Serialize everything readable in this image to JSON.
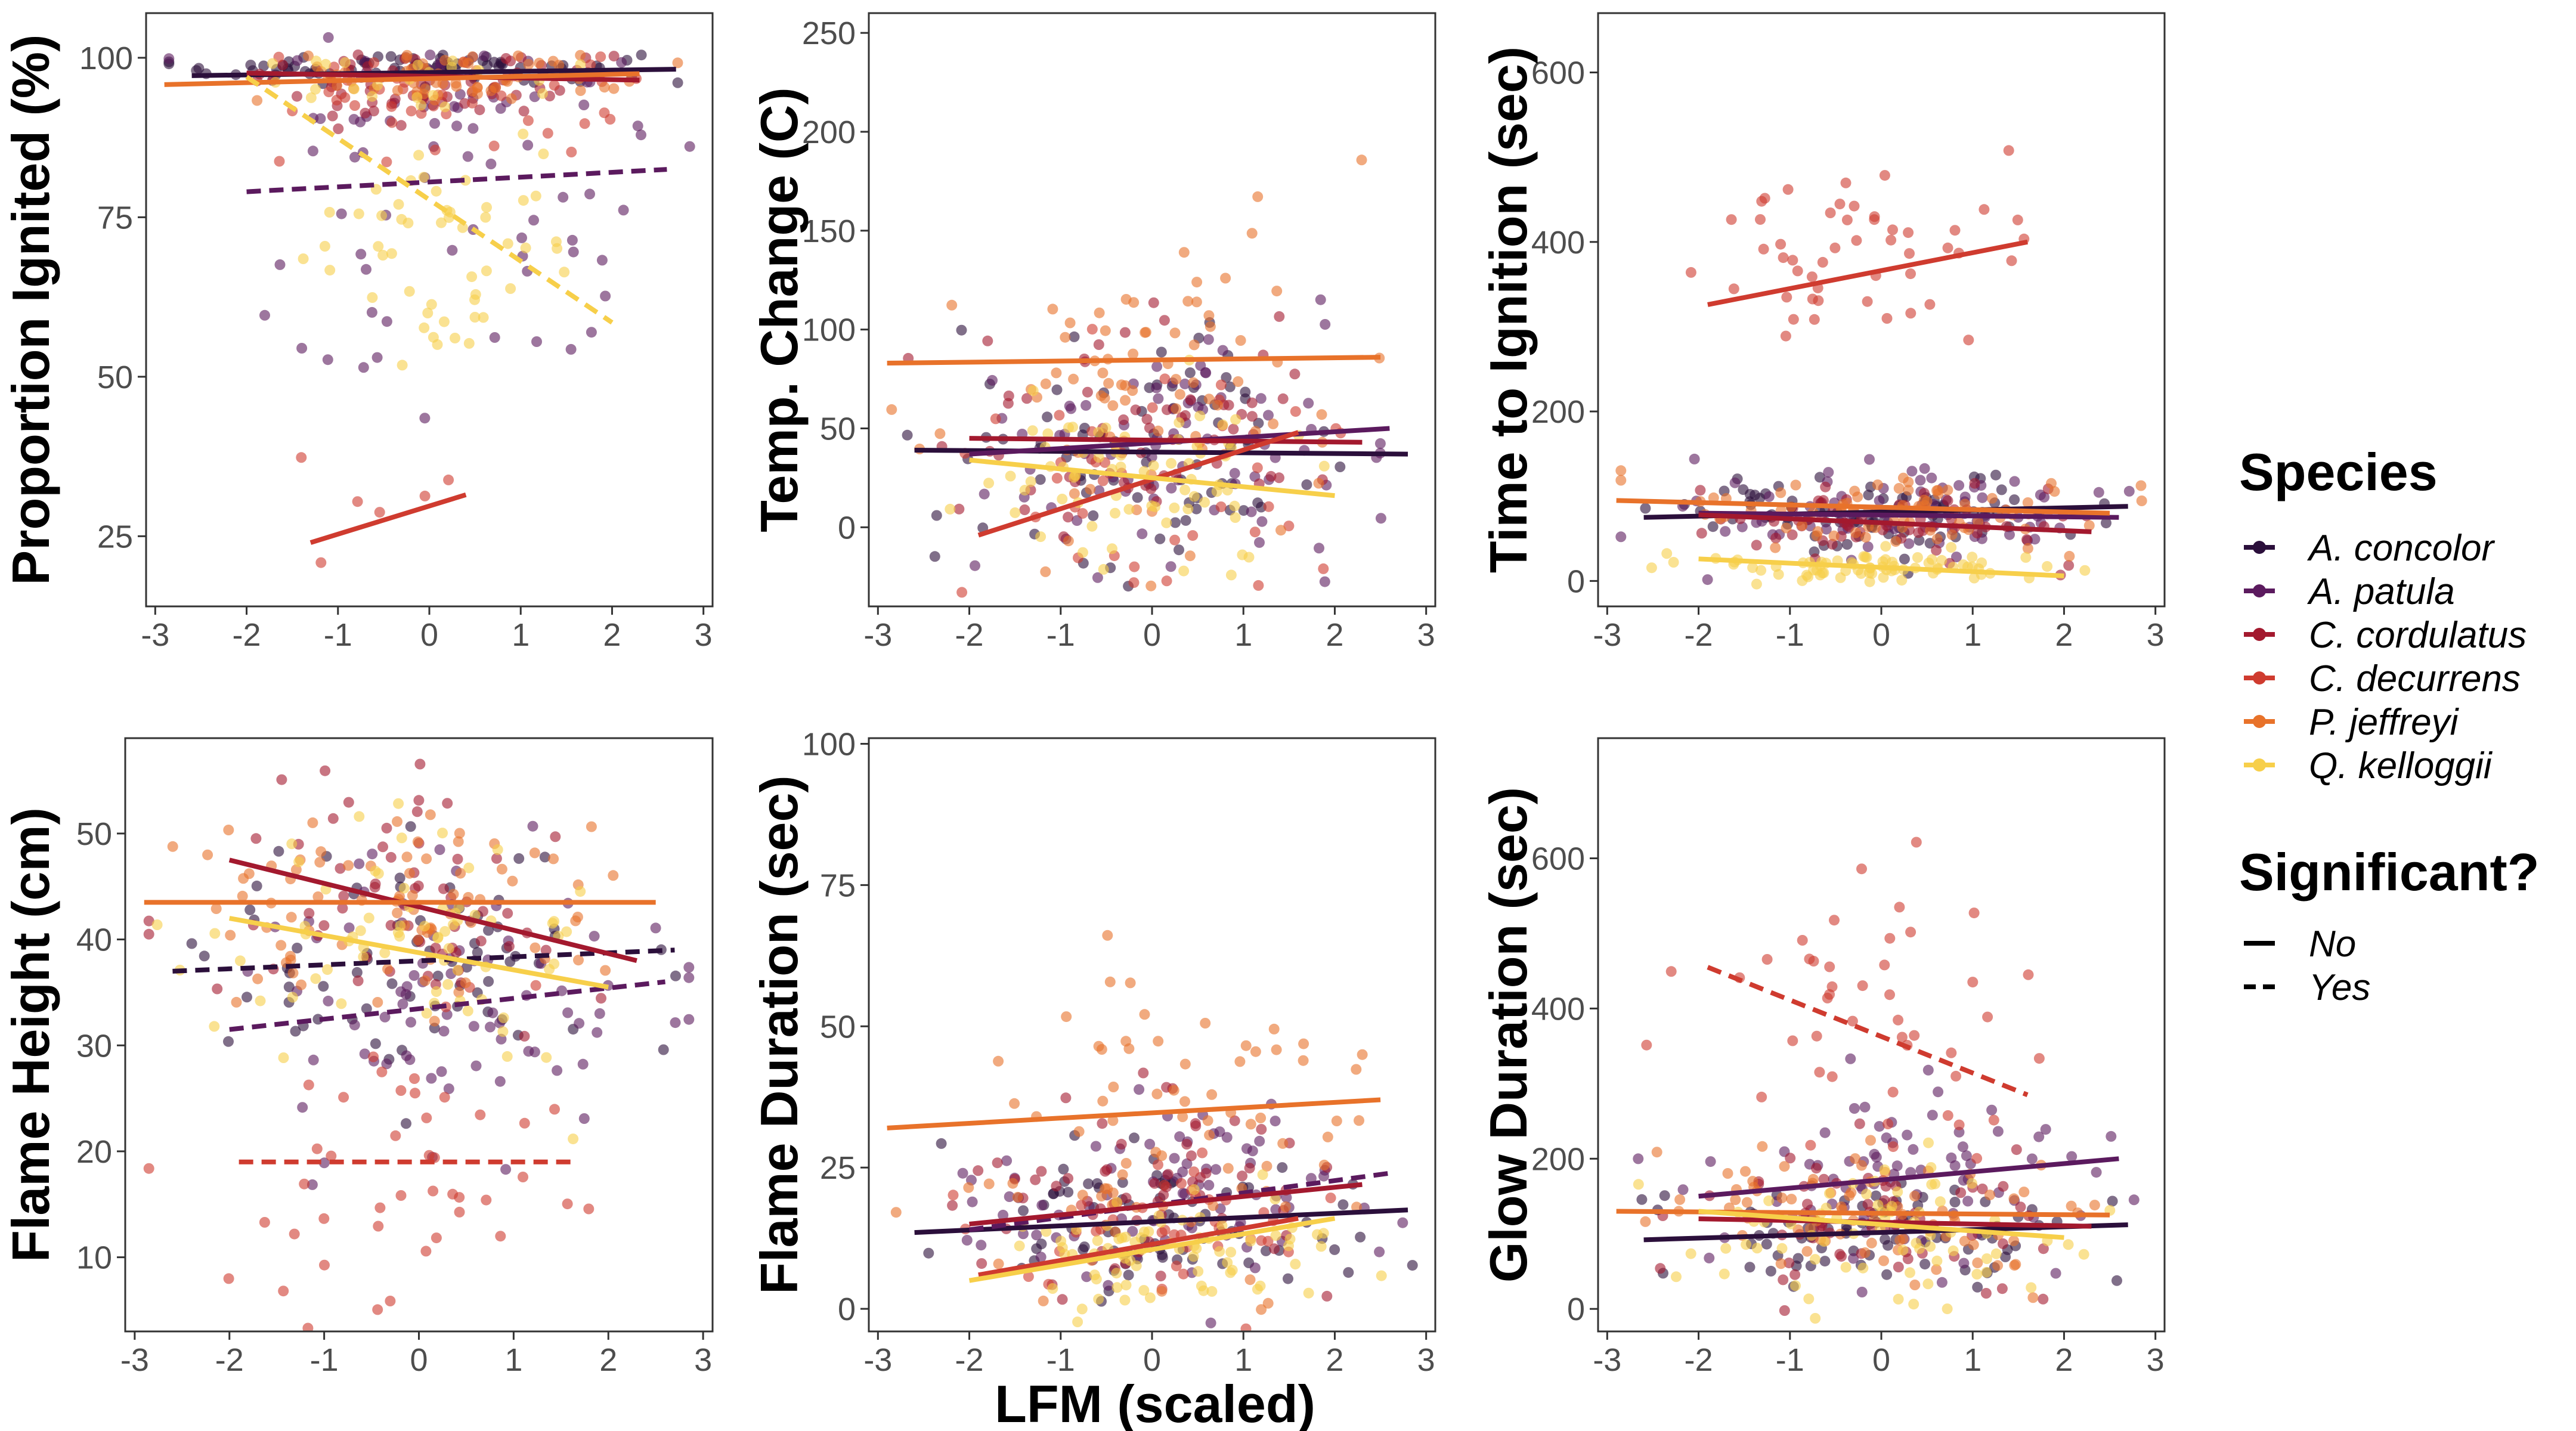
{
  "figure": {
    "xlabel": "LFM (scaled)"
  },
  "legend": {
    "species_title": "Species",
    "significance_title": "Significant?",
    "species": [
      {
        "name": "A. concolor",
        "color": "#2b0f3b"
      },
      {
        "name": "A. patula",
        "color": "#5b1a5e"
      },
      {
        "name": "C. cordulatus",
        "color": "#a3192e"
      },
      {
        "name": "C. decurrens",
        "color": "#cf3b2f"
      },
      {
        "name": "P. jeffreyi",
        "color": "#e8722a"
      },
      {
        "name": "Q. kelloggii",
        "color": "#f7cf4a"
      }
    ],
    "significance": [
      {
        "name": "No",
        "dash": "solid"
      },
      {
        "name": "Yes",
        "dash": "dashed"
      }
    ]
  },
  "chart_data": [
    {
      "type": "scatter",
      "ylabel": "Proportion Ignited (%)",
      "xlim": [
        -3.1,
        3.1
      ],
      "ylim": [
        14,
        107
      ],
      "xticks": [
        -3,
        -2,
        -1,
        0,
        1,
        2,
        3
      ],
      "yticks": [
        25,
        50,
        75,
        100
      ],
      "trend_lines": [
        {
          "species": "A. concolor",
          "significant": "No",
          "x": [
            -2.6,
            2.7
          ],
          "y": [
            97.2,
            98.2
          ]
        },
        {
          "species": "A. patula",
          "significant": "Yes",
          "x": [
            -2.0,
            2.6
          ],
          "y": [
            79,
            82.5
          ]
        },
        {
          "species": "C. cordulatus",
          "significant": "No",
          "x": [
            -2.0,
            2.3
          ],
          "y": [
            97.6,
            96.5
          ]
        },
        {
          "species": "C. decurrens",
          "significant": "No",
          "x": [
            -1.3,
            0.4
          ],
          "y": [
            24,
            31.5
          ]
        },
        {
          "species": "P. jeffreyi",
          "significant": "No",
          "x": [
            -2.9,
            2.3
          ],
          "y": [
            95.8,
            97.5
          ]
        },
        {
          "species": "Q. kelloggii",
          "significant": "Yes",
          "x": [
            -2.0,
            2.0
          ],
          "y": [
            97,
            58.5
          ]
        }
      ],
      "points": [
        {
          "species": "A. concolor",
          "cluster": "band",
          "n": 80,
          "xm": -0.1,
          "xs": 1.15,
          "ym": 98.5,
          "ys": 1.5
        },
        {
          "species": "A. patula",
          "cluster": "band",
          "n": 45,
          "xm": 0.2,
          "xs": 1.2,
          "ym": 95,
          "ys": 5
        },
        {
          "species": "A. patula",
          "cluster": "low",
          "n": 40,
          "xm": 0.3,
          "xs": 1.1,
          "ym": 72,
          "ys": 14
        },
        {
          "species": "C. cordulatus",
          "cluster": "band",
          "n": 60,
          "xm": 0,
          "xs": 1.1,
          "ym": 96,
          "ys": 3
        },
        {
          "species": "C. decurrens",
          "cluster": "band",
          "n": 40,
          "xm": 0.1,
          "xs": 1.0,
          "ym": 95,
          "ys": 5
        },
        {
          "species": "C. decurrens",
          "cluster": "low",
          "n": 6,
          "xm": -0.5,
          "xs": 0.6,
          "ym": 27,
          "ys": 4
        },
        {
          "species": "P. jeffreyi",
          "cluster": "band",
          "n": 60,
          "xm": -0.1,
          "xs": 1.0,
          "ym": 97.5,
          "ys": 2
        },
        {
          "species": "Q. kelloggii",
          "cluster": "band",
          "n": 20,
          "xm": -0.6,
          "xs": 0.9,
          "ym": 97,
          "ys": 3
        },
        {
          "species": "Q. kelloggii",
          "cluster": "low",
          "n": 55,
          "xm": 0.2,
          "xs": 0.9,
          "ym": 72,
          "ys": 10
        }
      ]
    },
    {
      "type": "scatter",
      "ylabel": "Temp. Change (C)",
      "xlim": [
        -3.1,
        3.1
      ],
      "ylim": [
        -40,
        260
      ],
      "xticks": [
        -3,
        -2,
        -1,
        0,
        1,
        2,
        3
      ],
      "yticks": [
        0,
        50,
        100,
        150,
        200,
        250
      ],
      "trend_lines": [
        {
          "species": "A. concolor",
          "significant": "No",
          "x": [
            -2.6,
            2.8
          ],
          "y": [
            39,
            37
          ]
        },
        {
          "species": "A. patula",
          "significant": "No",
          "x": [
            -2.0,
            2.6
          ],
          "y": [
            37,
            50
          ]
        },
        {
          "species": "C. cordulatus",
          "significant": "No",
          "x": [
            -2.0,
            2.3
          ],
          "y": [
            45,
            43
          ]
        },
        {
          "species": "C. decurrens",
          "significant": "No",
          "x": [
            -1.9,
            1.6
          ],
          "y": [
            -4,
            48
          ]
        },
        {
          "species": "P. jeffreyi",
          "significant": "No",
          "x": [
            -2.9,
            2.5
          ],
          "y": [
            83,
            86
          ]
        },
        {
          "species": "Q. kelloggii",
          "significant": "No",
          "x": [
            -2.0,
            2.0
          ],
          "y": [
            34,
            16
          ]
        }
      ],
      "points": [
        {
          "species": "A. concolor",
          "cluster": "main",
          "n": 80,
          "xm": 0,
          "xs": 1.1,
          "ym": 38,
          "ys": 28
        },
        {
          "species": "A. patula",
          "cluster": "main",
          "n": 80,
          "xm": 0.2,
          "xs": 1.1,
          "ym": 44,
          "ys": 32
        },
        {
          "species": "C. cordulatus",
          "cluster": "main",
          "n": 60,
          "xm": 0,
          "xs": 1.1,
          "ym": 44,
          "ys": 30
        },
        {
          "species": "C. decurrens",
          "cluster": "main",
          "n": 40,
          "xm": -0.2,
          "xs": 1.0,
          "ym": 22,
          "ys": 28
        },
        {
          "species": "P. jeffreyi",
          "cluster": "main",
          "n": 80,
          "xm": 0,
          "xs": 1.1,
          "ym": 84,
          "ys": 50
        },
        {
          "species": "Q. kelloggii",
          "cluster": "main",
          "n": 70,
          "xm": -0.2,
          "xs": 1.0,
          "ym": 25,
          "ys": 22
        }
      ]
    },
    {
      "type": "scatter",
      "ylabel": "Time to Ignition (sec)",
      "xlim": [
        -3.1,
        3.1
      ],
      "ylim": [
        -30,
        670
      ],
      "xticks": [
        -3,
        -2,
        -1,
        0,
        1,
        2,
        3
      ],
      "yticks": [
        0,
        200,
        400,
        600
      ],
      "trend_lines": [
        {
          "species": "A. concolor",
          "significant": "No",
          "x": [
            -2.6,
            2.7
          ],
          "y": [
            75,
            88
          ]
        },
        {
          "species": "A. patula",
          "significant": "No",
          "x": [
            -2.0,
            2.6
          ],
          "y": [
            80,
            75
          ]
        },
        {
          "species": "C. cordulatus",
          "significant": "No",
          "x": [
            -2.0,
            2.3
          ],
          "y": [
            78,
            58
          ]
        },
        {
          "species": "C. decurrens",
          "significant": "No",
          "x": [
            -1.9,
            1.6
          ],
          "y": [
            326,
            400
          ]
        },
        {
          "species": "P. jeffreyi",
          "significant": "No",
          "x": [
            -2.9,
            2.5
          ],
          "y": [
            95,
            80
          ]
        },
        {
          "species": "Q. kelloggii",
          "significant": "No",
          "x": [
            -2.0,
            2.0
          ],
          "y": [
            26,
            6
          ]
        }
      ],
      "points": [
        {
          "species": "A. concolor",
          "cluster": "main",
          "n": 90,
          "xm": 0,
          "xs": 1.1,
          "ym": 80,
          "ys": 22
        },
        {
          "species": "A. patula",
          "cluster": "main",
          "n": 80,
          "xm": 0.2,
          "xs": 1.1,
          "ym": 78,
          "ys": 28
        },
        {
          "species": "C. cordulatus",
          "cluster": "main",
          "n": 60,
          "xm": 0,
          "xs": 1.1,
          "ym": 70,
          "ys": 22
        },
        {
          "species": "C. decurrens",
          "cluster": "high",
          "n": 50,
          "xm": 0,
          "xs": 0.9,
          "ym": 390,
          "ys": 55
        },
        {
          "species": "P. jeffreyi",
          "cluster": "main",
          "n": 80,
          "xm": 0,
          "xs": 1.1,
          "ym": 85,
          "ys": 20
        },
        {
          "species": "Q. kelloggii",
          "cluster": "main",
          "n": 75,
          "xm": 0,
          "xs": 1.0,
          "ym": 16,
          "ys": 9
        }
      ]
    },
    {
      "type": "scatter",
      "ylabel": "Flame Height (cm)",
      "xlim": [
        -3.1,
        3.1
      ],
      "ylim": [
        3,
        59
      ],
      "xticks": [
        -3,
        -2,
        -1,
        0,
        1,
        2,
        3
      ],
      "yticks": [
        10,
        20,
        30,
        40,
        50
      ],
      "trend_lines": [
        {
          "species": "A. concolor",
          "significant": "Yes",
          "x": [
            -2.6,
            2.7
          ],
          "y": [
            37,
            39
          ]
        },
        {
          "species": "A. patula",
          "significant": "Yes",
          "x": [
            -2.0,
            2.6
          ],
          "y": [
            31.5,
            36
          ]
        },
        {
          "species": "C. cordulatus",
          "significant": "No",
          "x": [
            -2.0,
            2.3
          ],
          "y": [
            47.5,
            38
          ]
        },
        {
          "species": "C. decurrens",
          "significant": "Yes",
          "x": [
            -1.9,
            1.6
          ],
          "y": [
            19,
            19
          ]
        },
        {
          "species": "P. jeffreyi",
          "significant": "No",
          "x": [
            -2.9,
            2.5
          ],
          "y": [
            43.5,
            43.5
          ]
        },
        {
          "species": "Q. kelloggii",
          "significant": "No",
          "x": [
            -2.0,
            2.0
          ],
          "y": [
            42,
            35.5
          ]
        }
      ],
      "points": [
        {
          "species": "A. concolor",
          "cluster": "main",
          "n": 70,
          "xm": 0,
          "xs": 1.1,
          "ym": 38,
          "ys": 6
        },
        {
          "species": "A. patula",
          "cluster": "main",
          "n": 80,
          "xm": 0.2,
          "xs": 1.1,
          "ym": 34,
          "ys": 8
        },
        {
          "species": "C. cordulatus",
          "cluster": "main",
          "n": 60,
          "xm": 0,
          "xs": 1.1,
          "ym": 43,
          "ys": 6
        },
        {
          "species": "C. decurrens",
          "cluster": "main",
          "n": 45,
          "xm": -0.1,
          "xs": 1.0,
          "ym": 20,
          "ys": 7
        },
        {
          "species": "P. jeffreyi",
          "cluster": "main",
          "n": 80,
          "xm": 0,
          "xs": 1.1,
          "ym": 43,
          "ys": 5
        },
        {
          "species": "Q. kelloggii",
          "cluster": "main",
          "n": 70,
          "xm": -0.2,
          "xs": 1.0,
          "ym": 39,
          "ys": 6
        }
      ]
    },
    {
      "type": "scatter",
      "ylabel": "Flame Duration (sec)",
      "xlim": [
        -3.1,
        3.1
      ],
      "ylim": [
        -4,
        101
      ],
      "xticks": [
        -3,
        -2,
        -1,
        0,
        1,
        2,
        3
      ],
      "yticks": [
        0,
        25,
        50,
        75,
        100
      ],
      "trend_lines": [
        {
          "species": "A. concolor",
          "significant": "No",
          "x": [
            -2.6,
            2.8
          ],
          "y": [
            13.5,
            17.5
          ]
        },
        {
          "species": "A. patula",
          "significant": "Yes",
          "x": [
            -2.0,
            2.6
          ],
          "y": [
            14,
            24
          ]
        },
        {
          "species": "C. cordulatus",
          "significant": "No",
          "x": [
            -2.0,
            2.3
          ],
          "y": [
            15,
            22
          ]
        },
        {
          "species": "C. decurrens",
          "significant": "No",
          "x": [
            -1.9,
            1.6
          ],
          "y": [
            6,
            16
          ]
        },
        {
          "species": "P. jeffreyi",
          "significant": "No",
          "x": [
            -2.9,
            2.5
          ],
          "y": [
            32,
            37
          ]
        },
        {
          "species": "Q. kelloggii",
          "significant": "No",
          "x": [
            -2.0,
            2.0
          ],
          "y": [
            5,
            16
          ]
        }
      ],
      "points": [
        {
          "species": "A. concolor",
          "cluster": "main",
          "n": 80,
          "xm": 0,
          "xs": 1.1,
          "ym": 16,
          "ys": 7
        },
        {
          "species": "A. patula",
          "cluster": "main",
          "n": 80,
          "xm": 0.2,
          "xs": 1.1,
          "ym": 19,
          "ys": 9
        },
        {
          "species": "C. cordulatus",
          "cluster": "main",
          "n": 60,
          "xm": 0,
          "xs": 1.1,
          "ym": 19,
          "ys": 8
        },
        {
          "species": "C. decurrens",
          "cluster": "main",
          "n": 40,
          "xm": -0.1,
          "xs": 1.0,
          "ym": 13,
          "ys": 7
        },
        {
          "species": "P. jeffreyi",
          "cluster": "main",
          "n": 80,
          "xm": 0,
          "xs": 1.1,
          "ym": 33,
          "ys": 16
        },
        {
          "species": "Q. kelloggii",
          "cluster": "main",
          "n": 75,
          "xm": 0,
          "xs": 1.0,
          "ym": 10,
          "ys": 6
        }
      ]
    },
    {
      "type": "scatter",
      "ylabel": "Glow Duration (sec)",
      "xlim": [
        -3.1,
        3.1
      ],
      "ylim": [
        -30,
        760
      ],
      "xticks": [
        -3,
        -2,
        -1,
        0,
        1,
        2,
        3
      ],
      "yticks": [
        0,
        200,
        400,
        600
      ],
      "trend_lines": [
        {
          "species": "A. concolor",
          "significant": "No",
          "x": [
            -2.6,
            2.7
          ],
          "y": [
            92,
            112
          ]
        },
        {
          "species": "A. patula",
          "significant": "No",
          "x": [
            -2.0,
            2.6
          ],
          "y": [
            150,
            200
          ]
        },
        {
          "species": "C. cordulatus",
          "significant": "No",
          "x": [
            -2.0,
            2.3
          ],
          "y": [
            120,
            110
          ]
        },
        {
          "species": "C. decurrens",
          "significant": "Yes",
          "x": [
            -1.9,
            1.6
          ],
          "y": [
            455,
            285
          ]
        },
        {
          "species": "P. jeffreyi",
          "significant": "No",
          "x": [
            -2.9,
            2.5
          ],
          "y": [
            130,
            125
          ]
        },
        {
          "species": "Q. kelloggii",
          "significant": "No",
          "x": [
            -2.0,
            2.0
          ],
          "y": [
            130,
            95
          ]
        }
      ],
      "points": [
        {
          "species": "A. concolor",
          "cluster": "main",
          "n": 80,
          "xm": 0,
          "xs": 1.1,
          "ym": 100,
          "ys": 40
        },
        {
          "species": "A. patula",
          "cluster": "main",
          "n": 80,
          "xm": 0.2,
          "xs": 1.1,
          "ym": 170,
          "ys": 60
        },
        {
          "species": "C. cordulatus",
          "cluster": "main",
          "n": 60,
          "xm": 0,
          "xs": 1.1,
          "ym": 115,
          "ys": 45
        },
        {
          "species": "C. decurrens",
          "cluster": "high",
          "n": 45,
          "xm": -0.1,
          "xs": 0.9,
          "ym": 390,
          "ys": 110
        },
        {
          "species": "P. jeffreyi",
          "cluster": "main",
          "n": 80,
          "xm": 0,
          "xs": 1.1,
          "ym": 125,
          "ys": 50
        },
        {
          "species": "Q. kelloggii",
          "cluster": "main",
          "n": 70,
          "xm": 0,
          "xs": 1.0,
          "ym": 95,
          "ys": 45
        }
      ]
    }
  ]
}
